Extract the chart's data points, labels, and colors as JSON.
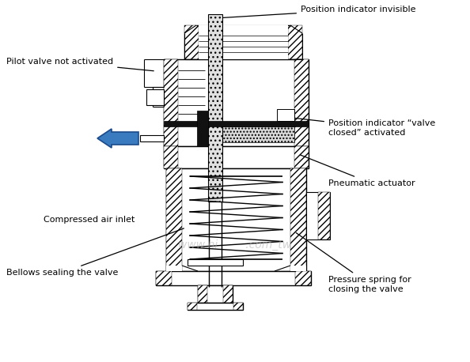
{
  "figsize": [
    5.94,
    4.58
  ],
  "dpi": 100,
  "bg": "#ffffff",
  "hatch_color": "#000000",
  "labels": {
    "pos_invis": "Position indicator invisible",
    "pilot": "Pilot valve not activated",
    "pos_closed": "Position indicator “valve\nclosed” activated",
    "pneumatic": "Pneumatic actuator",
    "air_inlet": "Compressed air inlet",
    "bellows": "Bellows sealing the valve",
    "spring": "Pressure spring for\nclosing the valve"
  },
  "watermark": "www.hi        .com_tw",
  "blue_arrow": {
    "fc": "#3a7abf",
    "ec": "#1a4a8a"
  },
  "ann_color": "#000000",
  "text_fontsize": 8.0
}
